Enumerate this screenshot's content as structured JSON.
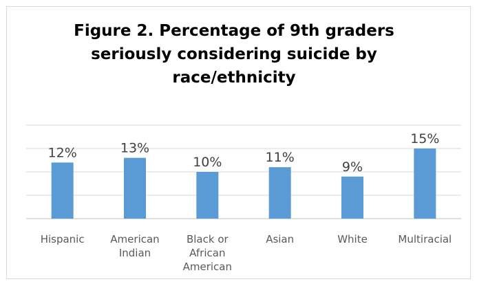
{
  "chart_data": {
    "type": "bar",
    "title": "Figure 2. Percentage of 9th graders seriously considering suicide by race/ethnicity",
    "categories": [
      [
        "Hispanic"
      ],
      [
        "American",
        "Indian"
      ],
      [
        "Black or",
        "African",
        "American"
      ],
      [
        "Asian"
      ],
      [
        "White"
      ],
      [
        "Multiracial"
      ]
    ],
    "values": [
      12,
      13,
      10,
      11,
      9,
      15
    ],
    "data_labels": [
      "12%",
      "13%",
      "10%",
      "11%",
      "9%",
      "15%"
    ],
    "xlabel": "",
    "ylabel": "",
    "ylim": [
      0,
      20
    ],
    "grid": true,
    "legend": "none",
    "bar_color": "#5b9bd5"
  }
}
